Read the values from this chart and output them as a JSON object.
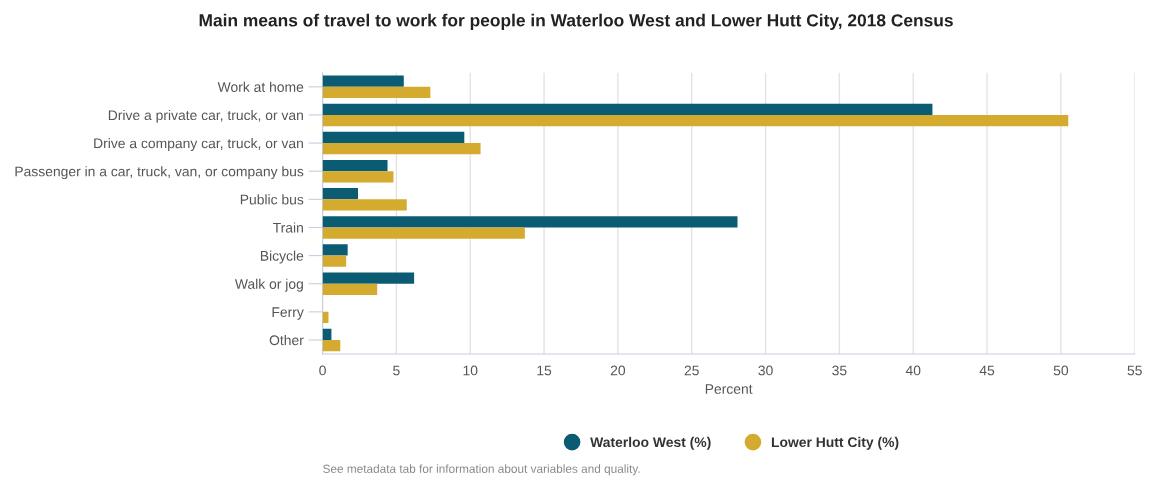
{
  "chart_data": {
    "type": "bar",
    "orientation": "horizontal",
    "title": "Main means of travel to work for people in Waterloo West and Lower Hutt City, 2018 Census",
    "xlabel": "Percent",
    "categories": [
      "Work at home",
      "Drive a private car, truck, or van",
      "Drive a company car, truck, or van",
      "Passenger in a car, truck, van, or company bus",
      "Public bus",
      "Train",
      "Bicycle",
      "Walk or jog",
      "Ferry",
      "Other"
    ],
    "series": [
      {
        "name": "Waterloo West (%)",
        "color": "#0b5c73",
        "values": [
          5.5,
          41.3,
          9.6,
          4.4,
          2.4,
          28.1,
          1.7,
          6.2,
          0,
          0.6
        ]
      },
      {
        "name": "Lower Hutt City (%)",
        "color": "#d4aa2f",
        "values": [
          7.3,
          50.5,
          10.7,
          4.8,
          5.7,
          13.7,
          1.6,
          3.7,
          0.4,
          1.2
        ]
      }
    ],
    "xlim": [
      0,
      55
    ],
    "xticks": [
      0,
      5,
      10,
      15,
      20,
      25,
      30,
      35,
      40,
      45,
      50,
      55
    ],
    "grid": "x",
    "legend": "bottom",
    "annotations": [
      "See metadata tab for information about variables and quality."
    ]
  }
}
